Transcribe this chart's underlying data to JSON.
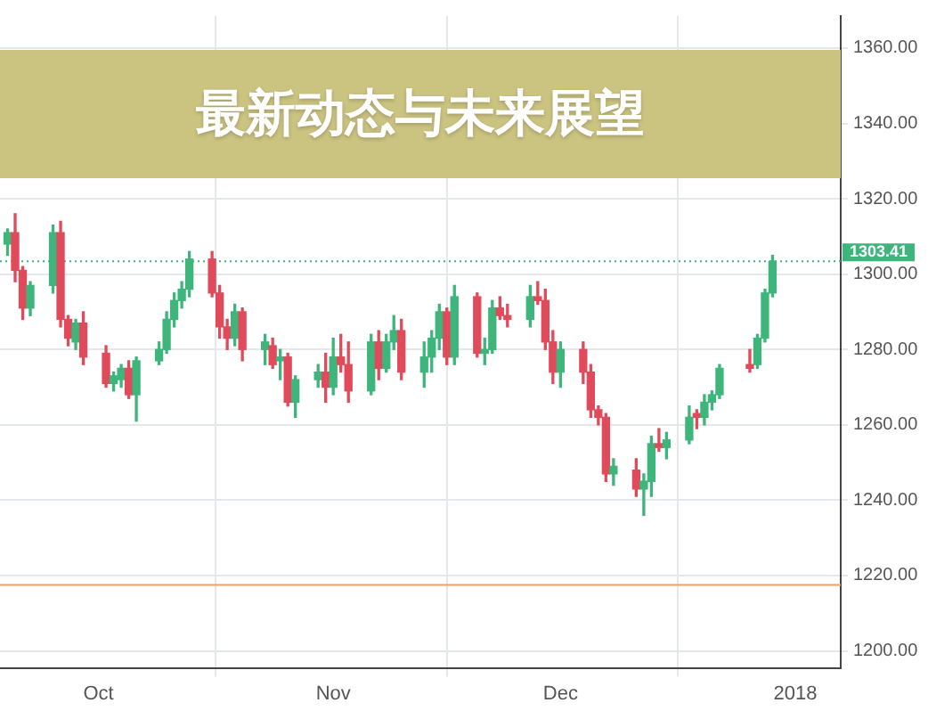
{
  "chart_data": {
    "type": "candlestick",
    "title": "最新动态与未来展望",
    "x": [
      "2017-09-19",
      "2017-09-20",
      "2017-09-21",
      "2017-09-22",
      "2017-09-25",
      "2017-09-26",
      "2017-09-27",
      "2017-09-28",
      "2017-09-29",
      "2017-10-02",
      "2017-10-03",
      "2017-10-04",
      "2017-10-05",
      "2017-10-06",
      "2017-10-09",
      "2017-10-10",
      "2017-10-11",
      "2017-10-12",
      "2017-10-13",
      "2017-10-16",
      "2017-10-17",
      "2017-10-18",
      "2017-10-19",
      "2017-10-20",
      "2017-10-23",
      "2017-10-24",
      "2017-10-25",
      "2017-10-26",
      "2017-10-27",
      "2017-10-30",
      "2017-10-31",
      "2017-11-01",
      "2017-11-02",
      "2017-11-03",
      "2017-11-06",
      "2017-11-07",
      "2017-11-08",
      "2017-11-09",
      "2017-11-10",
      "2017-11-13",
      "2017-11-14",
      "2017-11-15",
      "2017-11-16",
      "2017-11-17",
      "2017-11-20",
      "2017-11-21",
      "2017-11-22",
      "2017-11-23",
      "2017-11-24",
      "2017-11-27",
      "2017-11-28",
      "2017-11-29",
      "2017-11-30",
      "2017-12-01",
      "2017-12-04",
      "2017-12-05",
      "2017-12-06",
      "2017-12-07",
      "2017-12-08",
      "2017-12-11",
      "2017-12-12",
      "2017-12-13",
      "2017-12-14",
      "2017-12-15",
      "2017-12-18",
      "2017-12-19",
      "2017-12-20",
      "2017-12-21",
      "2017-12-22",
      "2017-12-26",
      "2017-12-27",
      "2017-12-28",
      "2017-12-29"
    ],
    "ohlc": [
      [
        1308,
        1312,
        1305,
        1311
      ],
      [
        1311,
        1316,
        1298,
        1301
      ],
      [
        1301,
        1302,
        1288,
        1291
      ],
      [
        1291,
        1298,
        1289,
        1297
      ],
      [
        1297,
        1313,
        1295,
        1311
      ],
      [
        1311,
        1314,
        1286,
        1288
      ],
      [
        1288,
        1289,
        1281,
        1283
      ],
      [
        1282,
        1288,
        1280,
        1287
      ],
      [
        1287,
        1290,
        1276,
        1278
      ],
      [
        1279,
        1281,
        1270,
        1271
      ],
      [
        1271,
        1274,
        1269,
        1273
      ],
      [
        1272,
        1276,
        1270,
        1275
      ],
      [
        1275,
        1277,
        1267,
        1268
      ],
      [
        1268,
        1278,
        1261,
        1277
      ],
      [
        1277,
        1282,
        1276,
        1280
      ],
      [
        1280,
        1290,
        1279,
        1288
      ],
      [
        1288,
        1295,
        1286,
        1293
      ],
      [
        1293,
        1298,
        1291,
        1296
      ],
      [
        1296,
        1306,
        1294,
        1304
      ],
      [
        1304,
        1306,
        1294,
        1295
      ],
      [
        1295,
        1297,
        1283,
        1286
      ],
      [
        1286,
        1288,
        1280,
        1283
      ],
      [
        1283,
        1292,
        1281,
        1290
      ],
      [
        1290,
        1291,
        1277,
        1280
      ],
      [
        1280,
        1284,
        1276,
        1282
      ],
      [
        1281,
        1283,
        1275,
        1276
      ],
      [
        1277,
        1280,
        1272,
        1278
      ],
      [
        1278,
        1279,
        1265,
        1266
      ],
      [
        1266,
        1273,
        1262,
        1272
      ],
      [
        1272,
        1276,
        1270,
        1274
      ],
      [
        1274,
        1279,
        1266,
        1270
      ],
      [
        1270,
        1283,
        1268,
        1278
      ],
      [
        1278,
        1284,
        1274,
        1276
      ],
      [
        1276,
        1282,
        1266,
        1269
      ],
      [
        1269,
        1284,
        1268,
        1282
      ],
      [
        1282,
        1285,
        1272,
        1275
      ],
      [
        1275,
        1284,
        1274,
        1282
      ],
      [
        1282,
        1289,
        1280,
        1285
      ],
      [
        1285,
        1288,
        1272,
        1274
      ],
      [
        1274,
        1282,
        1270,
        1278
      ],
      [
        1278,
        1285,
        1274,
        1283
      ],
      [
        1283,
        1292,
        1280,
        1290
      ],
      [
        1290,
        1291,
        1276,
        1278
      ],
      [
        1278,
        1297,
        1276,
        1294
      ],
      [
        1294,
        1295,
        1278,
        1279
      ],
      [
        1279,
        1283,
        1276,
        1280
      ],
      [
        1280,
        1293,
        1279,
        1291
      ],
      [
        1291,
        1294,
        1288,
        1289
      ],
      [
        1289,
        1292,
        1286,
        1288
      ],
      [
        1288,
        1297,
        1286,
        1294
      ],
      [
        1294,
        1298,
        1292,
        1293
      ],
      [
        1293,
        1296,
        1280,
        1282
      ],
      [
        1282,
        1285,
        1271,
        1274
      ],
      [
        1274,
        1282,
        1270,
        1280
      ],
      [
        1280,
        1282,
        1271,
        1274
      ],
      [
        1274,
        1276,
        1262,
        1264
      ],
      [
        1264,
        1265,
        1260,
        1262
      ],
      [
        1262,
        1263,
        1245,
        1247
      ],
      [
        1247,
        1251,
        1244,
        1249
      ],
      [
        1248,
        1251,
        1241,
        1243
      ],
      [
        1243,
        1247,
        1236,
        1245
      ],
      [
        1245,
        1257,
        1241,
        1255
      ],
      [
        1255,
        1259,
        1253,
        1254
      ],
      [
        1254,
        1258,
        1251,
        1256
      ],
      [
        1256,
        1265,
        1255,
        1262
      ],
      [
        1263,
        1264,
        1259,
        1262
      ],
      [
        1262,
        1268,
        1260,
        1266
      ],
      [
        1266,
        1269,
        1264,
        1268
      ],
      [
        1268,
        1276,
        1267,
        1275
      ],
      [
        1276,
        1280,
        1274,
        1275
      ],
      [
        1276,
        1284,
        1275,
        1283
      ],
      [
        1283,
        1296,
        1282,
        1295
      ],
      [
        1295,
        1305,
        1294,
        1303.41
      ]
    ],
    "colors": [
      "#3db57b",
      "#e04a5a",
      "#e04a5a",
      "#3db57b",
      "#3db57b",
      "#e04a5a",
      "#e04a5a",
      "#3db57b",
      "#e04a5a",
      "#e04a5a",
      "#3db57b",
      "#3db57b",
      "#e04a5a",
      "#3db57b",
      "#3db57b",
      "#3db57b",
      "#3db57b",
      "#3db57b",
      "#3db57b",
      "#e04a5a",
      "#e04a5a",
      "#e04a5a",
      "#3db57b",
      "#e04a5a",
      "#3db57b",
      "#e04a5a",
      "#3db57b",
      "#e04a5a",
      "#3db57b",
      "#3db57b",
      "#e04a5a",
      "#3db57b",
      "#e04a5a",
      "#e04a5a",
      "#3db57b",
      "#e04a5a",
      "#3db57b",
      "#3db57b",
      "#e04a5a",
      "#3db57b",
      "#3db57b",
      "#3db57b",
      "#e04a5a",
      "#3db57b",
      "#e04a5a",
      "#3db57b",
      "#3db57b",
      "#e04a5a",
      "#e04a5a",
      "#3db57b",
      "#e04a5a",
      "#e04a5a",
      "#e04a5a",
      "#3db57b",
      "#e04a5a",
      "#e04a5a",
      "#e04a5a",
      "#e04a5a",
      "#3db57b",
      "#e04a5a",
      "#3db57b",
      "#3db57b",
      "#e04a5a",
      "#3db57b",
      "#3db57b",
      "#e04a5a",
      "#3db57b",
      "#3db57b",
      "#3db57b",
      "#e04a5a",
      "#3db57b",
      "#3db57b",
      "#3db57b"
    ],
    "xlim": [
      "2017-09-18",
      "2018-01-07"
    ],
    "xticks": [
      {
        "value": "2017-10-01",
        "label": "Oct"
      },
      {
        "value": "2017-11-01",
        "label": "Nov"
      },
      {
        "value": "2017-12-01",
        "label": "Dec"
      },
      {
        "value": "2018-01-01",
        "label": "2018"
      }
    ],
    "ylim": [
      1195.5,
      1368.5
    ],
    "yticks": [
      {
        "value": 1200,
        "label": "1200.00"
      },
      {
        "value": 1220,
        "label": "1220.00"
      },
      {
        "value": 1240,
        "label": "1240.00"
      },
      {
        "value": 1260,
        "label": "1260.00"
      },
      {
        "value": 1280,
        "label": "1280.00"
      },
      {
        "value": 1300,
        "label": "1300.00"
      },
      {
        "value": 1320,
        "label": "1320.00"
      },
      {
        "value": 1340,
        "label": "1340.00"
      },
      {
        "value": 1360,
        "label": "1360.00"
      }
    ],
    "ref_lines": [
      {
        "axis": "y",
        "value": 1303.41,
        "label": "1303.41",
        "color": "#3db57b",
        "line_style": "dotted"
      },
      {
        "axis": "y",
        "value": 1217.5,
        "label": null,
        "color": "#f0a060",
        "line_style": "solid"
      }
    ],
    "grid": true,
    "legend": false
  }
}
